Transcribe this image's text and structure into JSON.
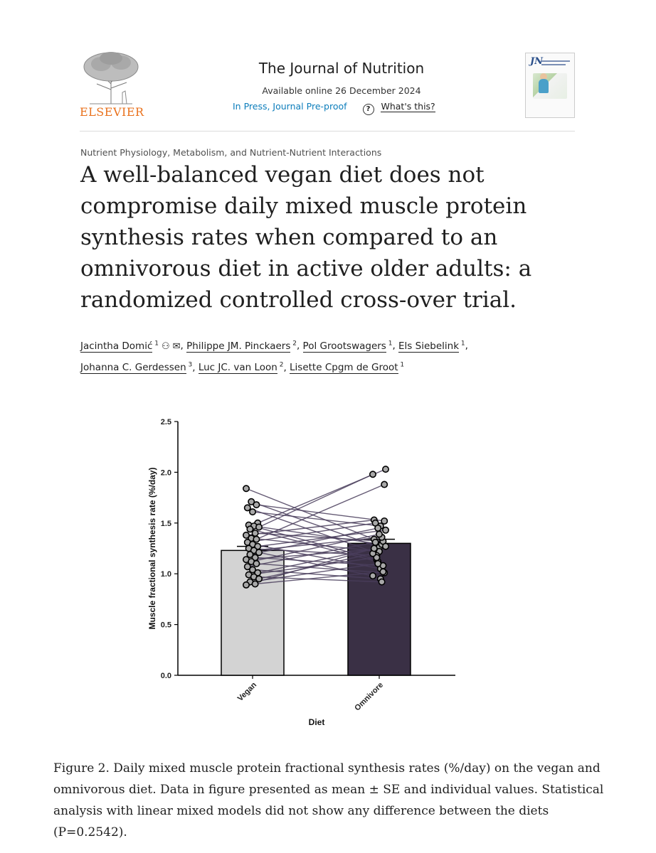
{
  "header": {
    "publisher": "ELSEVIER",
    "journal": "The Journal of Nutrition",
    "available": "Available online 26 December 2024",
    "status": "In Press, Journal Pre-proof",
    "whats_this": "What's this?",
    "cover_abbrev": "JN",
    "colors": {
      "publisher": "#e9711c",
      "status_link": "#0c7dbb"
    },
    "icons": {
      "help": "question-circle-icon",
      "author": "person-icon",
      "email": "envelope-icon"
    }
  },
  "article": {
    "section": "Nutrient Physiology, Metabolism, and Nutrient-Nutrient Interactions",
    "title": "A well-balanced vegan diet does not compromise daily mixed muscle protein synthesis rates when compared to an omnivorous diet in active older adults: a randomized controlled cross-over trial.",
    "authors": [
      {
        "name": "Jacintha Domić",
        "aff": "1",
        "contact": true
      },
      {
        "name": "Philippe JM. Pinckaers",
        "aff": "2"
      },
      {
        "name": "Pol Grootswagers",
        "aff": "1"
      },
      {
        "name": "Els Siebelink",
        "aff": "1"
      },
      {
        "name": "Johanna C. Gerdessen",
        "aff": "3"
      },
      {
        "name": "Luc JC. van Loon",
        "aff": "2"
      },
      {
        "name": "Lisette Cpgm de Groot",
        "aff": "1"
      }
    ]
  },
  "figure": {
    "caption": "Figure 2. Daily mixed muscle protein fractional synthesis rates (%/day) on the vegan and omnivorous diet. Data in figure presented as mean ± SE and individual values. Statistical analysis with linear mixed models did not show any difference between the diets (P=0.2542)."
  },
  "chart_data": {
    "type": "bar",
    "categories": [
      "Vegan",
      "Omnivore"
    ],
    "values": [
      1.23,
      1.3
    ],
    "se": [
      0.04,
      0.04
    ],
    "xlabel": "Diet",
    "ylabel": "Muscle fractional synthesis rate (%/day)",
    "ylim": [
      0,
      2.5
    ],
    "yticks": [
      "0.0",
      "0.5",
      "1.0",
      "1.5",
      "2.0",
      "2.5"
    ],
    "bar_colors": [
      "#d3d3d3",
      "#3a3045"
    ],
    "paired_values": [
      [
        1.84,
        1.34
      ],
      [
        1.71,
        1.26
      ],
      [
        1.68,
        1.52
      ],
      [
        1.65,
        1.21
      ],
      [
        1.61,
        1.47
      ],
      [
        1.5,
        2.03
      ],
      [
        1.48,
        1.14
      ],
      [
        1.47,
        1.29
      ],
      [
        1.46,
        1.98
      ],
      [
        1.44,
        1.12
      ],
      [
        1.4,
        1.32
      ],
      [
        1.38,
        1.53
      ],
      [
        1.35,
        1.22
      ],
      [
        1.34,
        1.88
      ],
      [
        1.31,
        1.5
      ],
      [
        1.29,
        1.05
      ],
      [
        1.27,
        1.43
      ],
      [
        1.25,
        1.18
      ],
      [
        1.23,
        1.36
      ],
      [
        1.21,
        0.98
      ],
      [
        1.19,
        1.45
      ],
      [
        1.16,
        1.08
      ],
      [
        1.14,
        1.24
      ],
      [
        1.12,
        1.39
      ],
      [
        1.1,
        1.01
      ],
      [
        1.07,
        1.31
      ],
      [
        1.04,
        0.95
      ],
      [
        1.01,
        1.27
      ],
      [
        0.99,
        1.16
      ],
      [
        0.97,
        0.92
      ],
      [
        0.95,
        1.2
      ],
      [
        0.92,
        1.1
      ],
      [
        0.9,
        1.02
      ],
      [
        0.89,
        1.25
      ]
    ]
  }
}
